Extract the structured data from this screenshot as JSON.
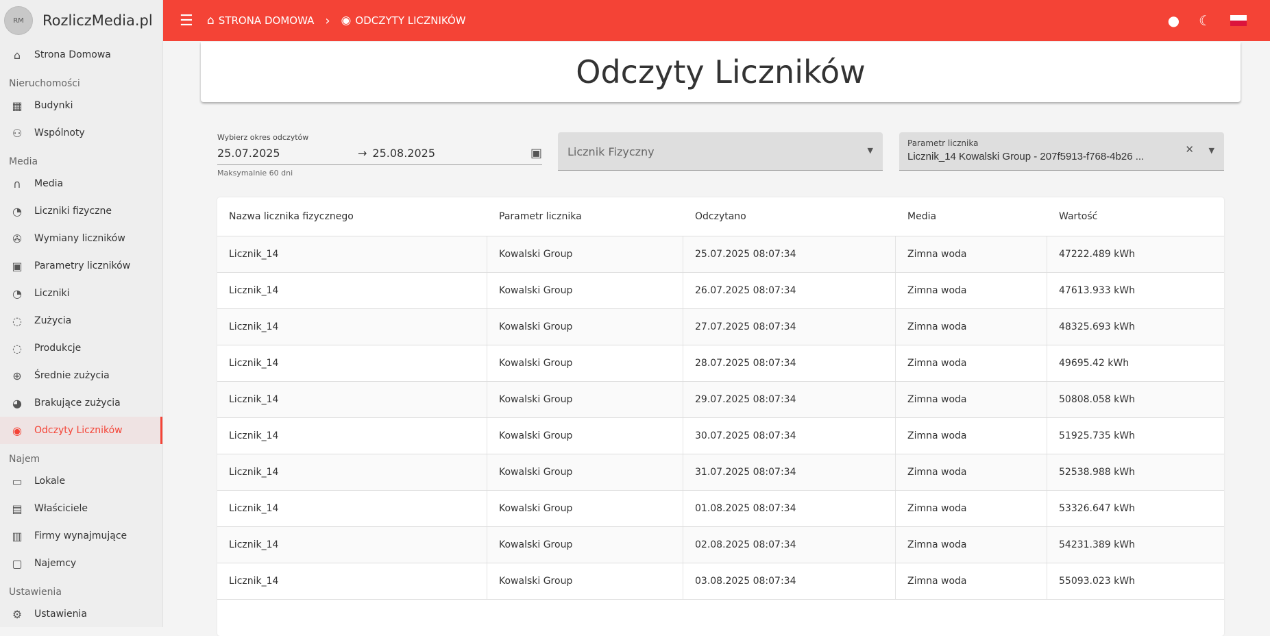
{
  "app": {
    "name": "RozliczMedia.pl",
    "logo_text": "RM"
  },
  "colors": {
    "accent": "#f44336"
  },
  "sidebar": {
    "home": {
      "label": "Strona Domowa",
      "icon": "home-icon"
    },
    "sections": [
      {
        "title": "Nieruchomości",
        "items": [
          {
            "label": "Budynki",
            "icon": "building-icon"
          },
          {
            "label": "Wspólnoty",
            "icon": "groups-icon"
          }
        ]
      },
      {
        "title": "Media",
        "items": [
          {
            "label": "Media",
            "icon": "media-icon"
          },
          {
            "label": "Liczniki fizyczne",
            "icon": "speedometer-icon"
          },
          {
            "label": "Wymiany liczników",
            "icon": "wrench-icon"
          },
          {
            "label": "Parametry liczników",
            "icon": "meter-parameter-icon"
          },
          {
            "label": "Liczniki",
            "icon": "speedometer-icon"
          },
          {
            "label": "Zużycia",
            "icon": "donut-icon"
          },
          {
            "label": "Produkcje",
            "icon": "donut-icon"
          },
          {
            "label": "Średnie zużycia",
            "icon": "donut-plus-icon"
          },
          {
            "label": "Brakujące zużycia",
            "icon": "donut-alert-icon"
          },
          {
            "label": "Odczyty Liczników",
            "icon": "meter-reading-icon",
            "active": true
          }
        ]
      },
      {
        "title": "Najem",
        "items": [
          {
            "label": "Lokale",
            "icon": "bed-icon"
          },
          {
            "label": "Właściciele",
            "icon": "owner-card-icon"
          },
          {
            "label": "Firmy wynajmujące",
            "icon": "briefcase-icon"
          },
          {
            "label": "Najemcy",
            "icon": "tenant-icon"
          }
        ]
      },
      {
        "title": "Ustawienia",
        "items": [
          {
            "label": "Ustawienia",
            "icon": "gear-icon"
          }
        ]
      }
    ]
  },
  "topbar": {
    "breadcrumb": [
      {
        "label": "STRONA DOMOWA",
        "icon": "home-icon"
      },
      {
        "label": "ODCZYTY LICZNIKÓW",
        "icon": "meter-reading-icon"
      }
    ]
  },
  "page": {
    "title": "Odczyty Liczników"
  },
  "filters": {
    "period": {
      "label": "Wybierz okres odczytów",
      "from": "25.07.2025",
      "to": "25.08.2025",
      "hint": "Maksymalnie 60 dni"
    },
    "physical_meter": {
      "placeholder": "Licznik Fizyczny"
    },
    "meter_parameter": {
      "label": "Parametr licznika",
      "value": "Licznik_14 Kowalski Group - 207f5913-f768-4b26 ..."
    }
  },
  "table": {
    "columns": [
      "Nazwa licznika fizycznego",
      "Parametr licznika",
      "Odczytano",
      "Media",
      "Wartość"
    ],
    "rows": [
      [
        "Licznik_14",
        "Kowalski Group",
        "25.07.2025 08:07:34",
        "Zimna woda",
        "47222.489 kWh"
      ],
      [
        "Licznik_14",
        "Kowalski Group",
        "26.07.2025 08:07:34",
        "Zimna woda",
        "47613.933 kWh"
      ],
      [
        "Licznik_14",
        "Kowalski Group",
        "27.07.2025 08:07:34",
        "Zimna woda",
        "48325.693 kWh"
      ],
      [
        "Licznik_14",
        "Kowalski Group",
        "28.07.2025 08:07:34",
        "Zimna woda",
        "49695.42 kWh"
      ],
      [
        "Licznik_14",
        "Kowalski Group",
        "29.07.2025 08:07:34",
        "Zimna woda",
        "50808.058 kWh"
      ],
      [
        "Licznik_14",
        "Kowalski Group",
        "30.07.2025 08:07:34",
        "Zimna woda",
        "51925.735 kWh"
      ],
      [
        "Licznik_14",
        "Kowalski Group",
        "31.07.2025 08:07:34",
        "Zimna woda",
        "52538.988 kWh"
      ],
      [
        "Licznik_14",
        "Kowalski Group",
        "01.08.2025 08:07:34",
        "Zimna woda",
        "53326.647 kWh"
      ],
      [
        "Licznik_14",
        "Kowalski Group",
        "02.08.2025 08:07:34",
        "Zimna woda",
        "54231.389 kWh"
      ],
      [
        "Licznik_14",
        "Kowalski Group",
        "03.08.2025 08:07:34",
        "Zimna woda",
        "55093.023 kWh"
      ]
    ]
  }
}
